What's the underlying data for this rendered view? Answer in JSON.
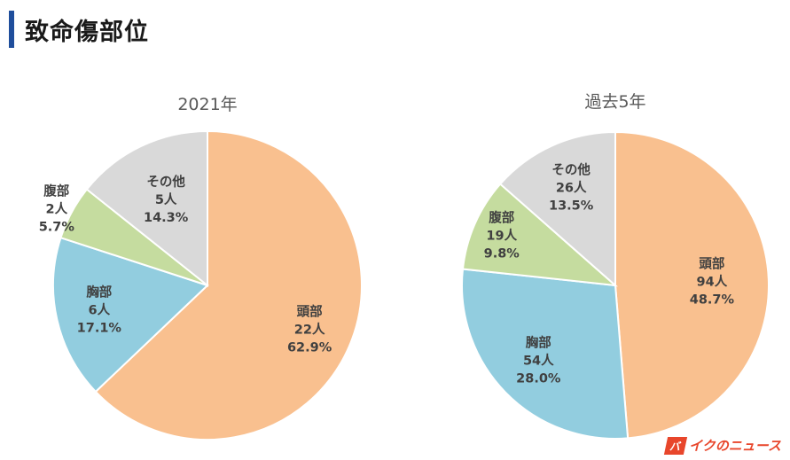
{
  "header": {
    "title": "致命傷部位"
  },
  "logo": {
    "mark": "バ",
    "text": "イクのニュース"
  },
  "colors": {
    "head": "#f9c08f",
    "chest": "#92cddf",
    "abdomen": "#c5dc9f",
    "other": "#d9d9d9"
  },
  "chart_data": [
    {
      "type": "pie",
      "title": "2021年",
      "slices": [
        {
          "name": "頭部",
          "count": "22人",
          "value": 62.9,
          "pct": "62.9%",
          "color": "#f9c08f"
        },
        {
          "name": "胸部",
          "count": "6人",
          "value": 17.1,
          "pct": "17.1%",
          "color": "#92cddf"
        },
        {
          "name": "腹部",
          "count": "2人",
          "value": 5.7,
          "pct": "5.7%",
          "color": "#c5dc9f"
        },
        {
          "name": "その他",
          "count": "5人",
          "value": 14.3,
          "pct": "14.3%",
          "color": "#d9d9d9"
        }
      ]
    },
    {
      "type": "pie",
      "title": "過去5年",
      "slices": [
        {
          "name": "頭部",
          "count": "94人",
          "value": 48.7,
          "pct": "48.7%",
          "color": "#f9c08f"
        },
        {
          "name": "胸部",
          "count": "54人",
          "value": 28.0,
          "pct": "28.0%",
          "color": "#92cddf"
        },
        {
          "name": "腹部",
          "count": "19人",
          "value": 9.8,
          "pct": "9.8%",
          "color": "#c5dc9f"
        },
        {
          "name": "その他",
          "count": "26人",
          "value": 13.5,
          "pct": "13.5%",
          "color": "#d9d9d9"
        }
      ]
    }
  ]
}
